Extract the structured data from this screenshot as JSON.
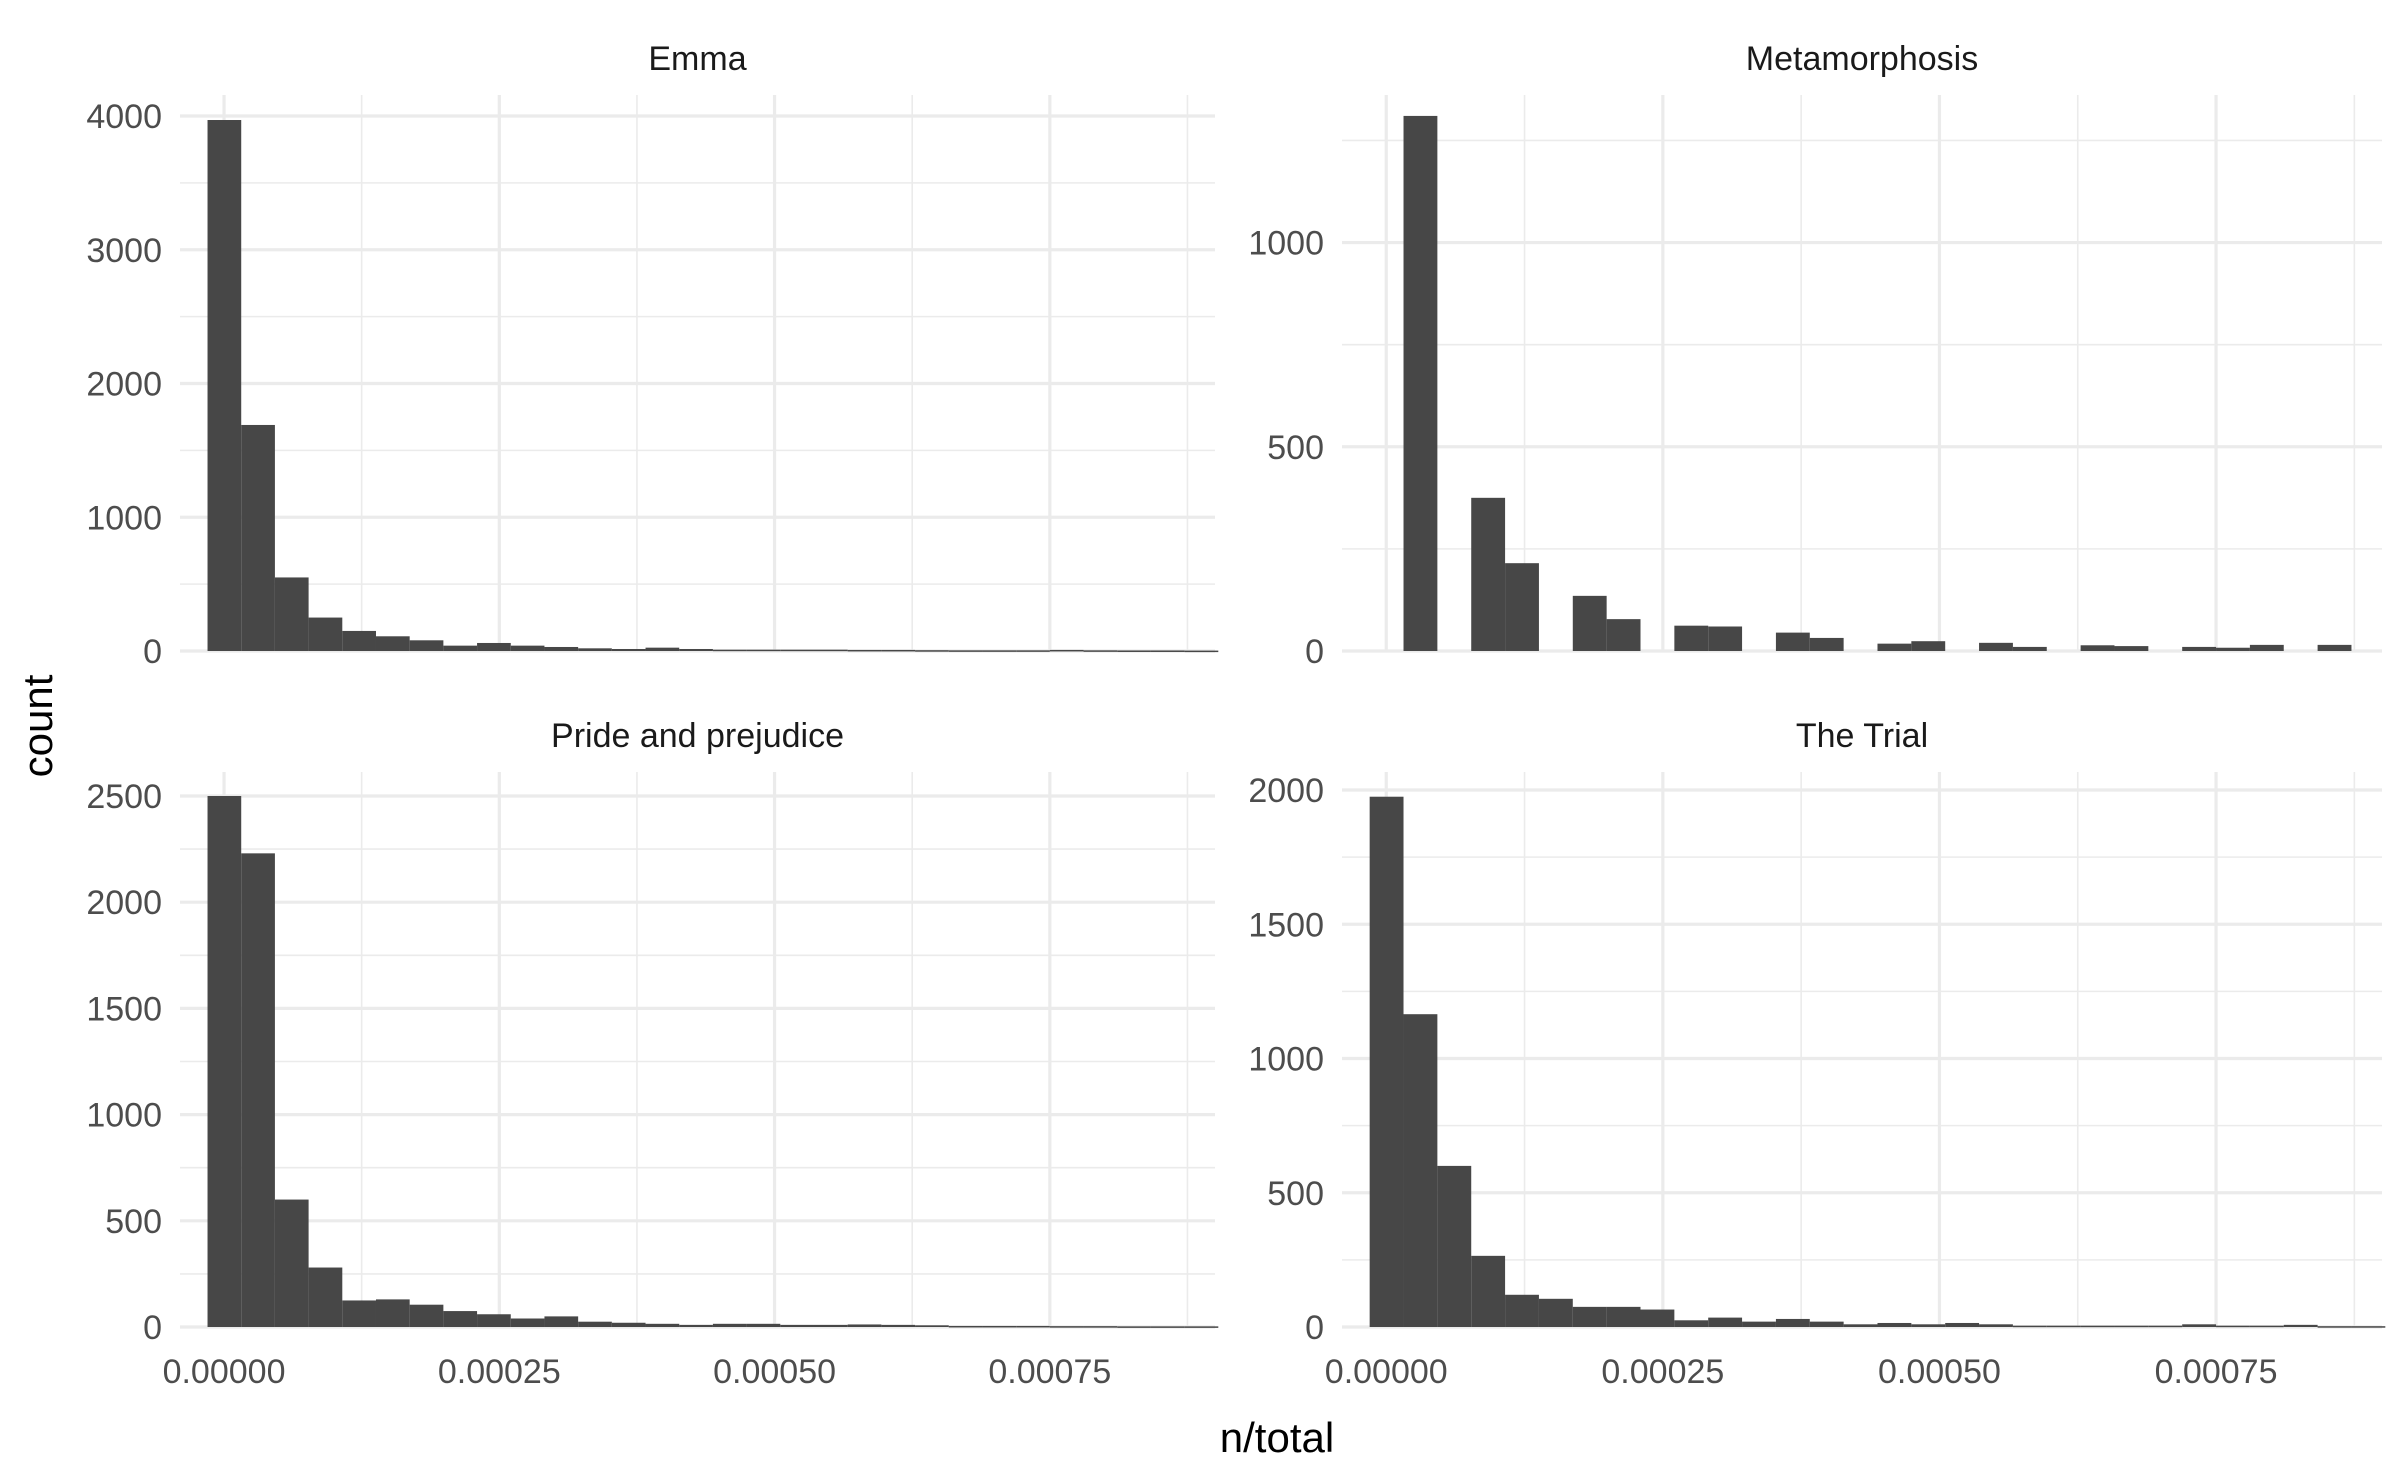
{
  "chart_data": {
    "type": "bar",
    "subtype": "histogram",
    "layout": "facet_wrap 2x2",
    "xlabel": "n/total",
    "ylabel": "count",
    "grid": true,
    "legend": "none",
    "bar_color": "#474747",
    "x_range": [
      -4e-05,
      0.0009
    ],
    "x_ticks": [
      0.0,
      0.00025,
      0.0005,
      0.00075
    ],
    "x_tick_labels": [
      "0.00000",
      "0.00025",
      "0.00050",
      "0.00075"
    ],
    "bins": 30,
    "bin_start": -1.5e-05,
    "bin_width": 3.06e-05,
    "panels": [
      {
        "title": "Emma",
        "ylim": [
          0,
          4000
        ],
        "y_ticks": [
          0,
          1000,
          2000,
          3000,
          4000
        ],
        "y_tick_labels": [
          "0",
          "1000",
          "2000",
          "3000",
          "4000"
        ],
        "counts": [
          3970,
          1690,
          550,
          250,
          150,
          110,
          80,
          40,
          60,
          40,
          30,
          20,
          15,
          25,
          15,
          10,
          10,
          10,
          10,
          8,
          8,
          6,
          5,
          5,
          5,
          8,
          5,
          4,
          4,
          3
        ]
      },
      {
        "title": "Metamorphosis",
        "ylim": [
          0,
          1300
        ],
        "y_ticks": [
          0,
          500,
          1000
        ],
        "y_tick_labels": [
          "0",
          "500",
          "1000"
        ],
        "counts": [
          0,
          1310,
          0,
          375,
          215,
          0,
          135,
          78,
          0,
          62,
          60,
          0,
          45,
          32,
          0,
          18,
          24,
          0,
          20,
          10,
          0,
          14,
          12,
          0,
          10,
          8,
          15,
          0,
          15,
          0
        ]
      },
      {
        "title": "Pride and prejudice",
        "ylim": [
          0,
          2500
        ],
        "y_ticks": [
          0,
          500,
          1000,
          1500,
          2000,
          2500
        ],
        "y_tick_labels": [
          "0",
          "500",
          "1000",
          "1500",
          "2000",
          "2500"
        ],
        "counts": [
          2500,
          2230,
          600,
          280,
          125,
          130,
          105,
          75,
          60,
          40,
          50,
          25,
          20,
          15,
          10,
          15,
          15,
          10,
          10,
          12,
          10,
          8,
          5,
          5,
          5,
          4,
          4,
          3,
          3,
          3
        ]
      },
      {
        "title": "The Trial",
        "ylim": [
          0,
          2000
        ],
        "y_ticks": [
          0,
          500,
          1000,
          1500,
          2000
        ],
        "y_tick_labels": [
          "0",
          "500",
          "1000",
          "1500",
          "2000"
        ],
        "counts": [
          1975,
          1165,
          600,
          265,
          120,
          105,
          75,
          75,
          65,
          25,
          35,
          20,
          30,
          20,
          10,
          15,
          10,
          15,
          10,
          5,
          5,
          5,
          5,
          5,
          10,
          5,
          5,
          8,
          3,
          3
        ]
      }
    ]
  }
}
